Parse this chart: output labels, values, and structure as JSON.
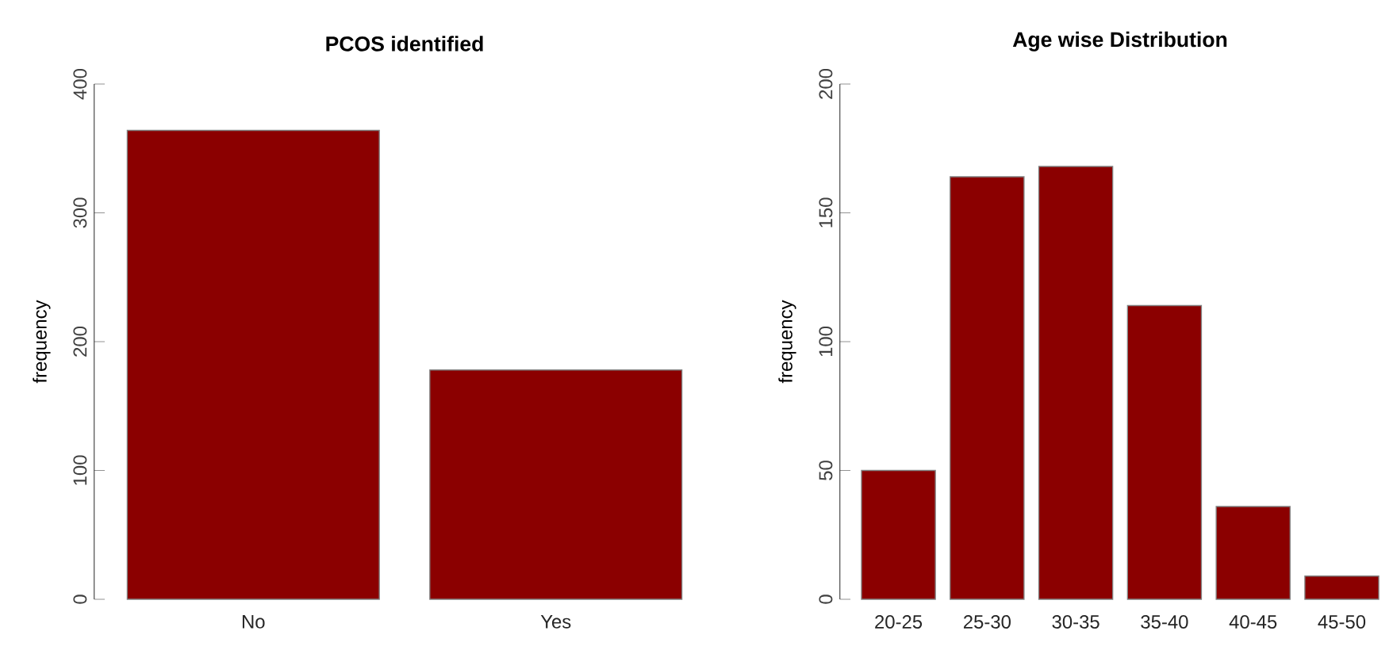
{
  "chart_data": [
    {
      "type": "bar",
      "title": "PCOS identified",
      "ylabel": "frequency",
      "categories": [
        "No",
        "Yes"
      ],
      "values": [
        364,
        178
      ],
      "color": "#8b0000",
      "ylim": [
        0,
        400
      ],
      "yticks": [
        0,
        100,
        200,
        300,
        400
      ]
    },
    {
      "type": "bar",
      "title": "Age wise Distribution",
      "ylabel": "frequency",
      "categories": [
        "20-25",
        "25-30",
        "30-35",
        "35-40",
        "40-45",
        "45-50"
      ],
      "values": [
        50,
        164,
        168,
        114,
        36,
        9
      ],
      "color": "#8b0000",
      "ylim": [
        0,
        200
      ],
      "yticks": [
        0,
        50,
        100,
        150,
        200
      ]
    }
  ]
}
